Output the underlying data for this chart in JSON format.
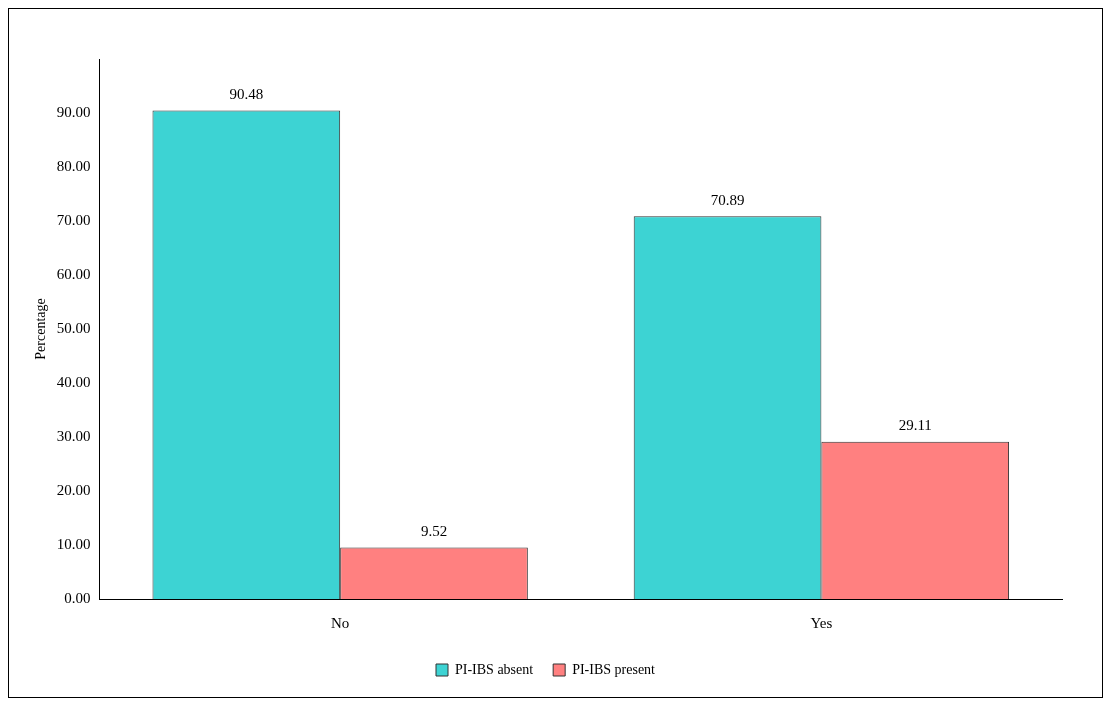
{
  "chart_data": {
    "type": "bar",
    "ylabel": "Percentage",
    "categories": [
      "No",
      "Yes"
    ],
    "series": [
      {
        "name": "PI-IBS absent",
        "color": "#3dd3d3",
        "values": [
          90.48,
          70.89
        ]
      },
      {
        "name": "PI-IBS present",
        "color": "#ff8080",
        "values": [
          9.52,
          29.11
        ]
      }
    ],
    "ylim": [
      0,
      100
    ],
    "yticks": [
      {
        "value": 0,
        "label": "0.00"
      },
      {
        "value": 10,
        "label": "10.00"
      },
      {
        "value": 20,
        "label": "20.00"
      },
      {
        "value": 30,
        "label": "30.00"
      },
      {
        "value": 40,
        "label": "40.00"
      },
      {
        "value": 50,
        "label": "50.00"
      },
      {
        "value": 60,
        "label": "60.00"
      },
      {
        "value": 70,
        "label": "70.00"
      },
      {
        "value": 80,
        "label": "80.00"
      },
      {
        "value": 90,
        "label": "90.00"
      }
    ],
    "grid": false,
    "legend": "bottom",
    "data_labels": true
  }
}
